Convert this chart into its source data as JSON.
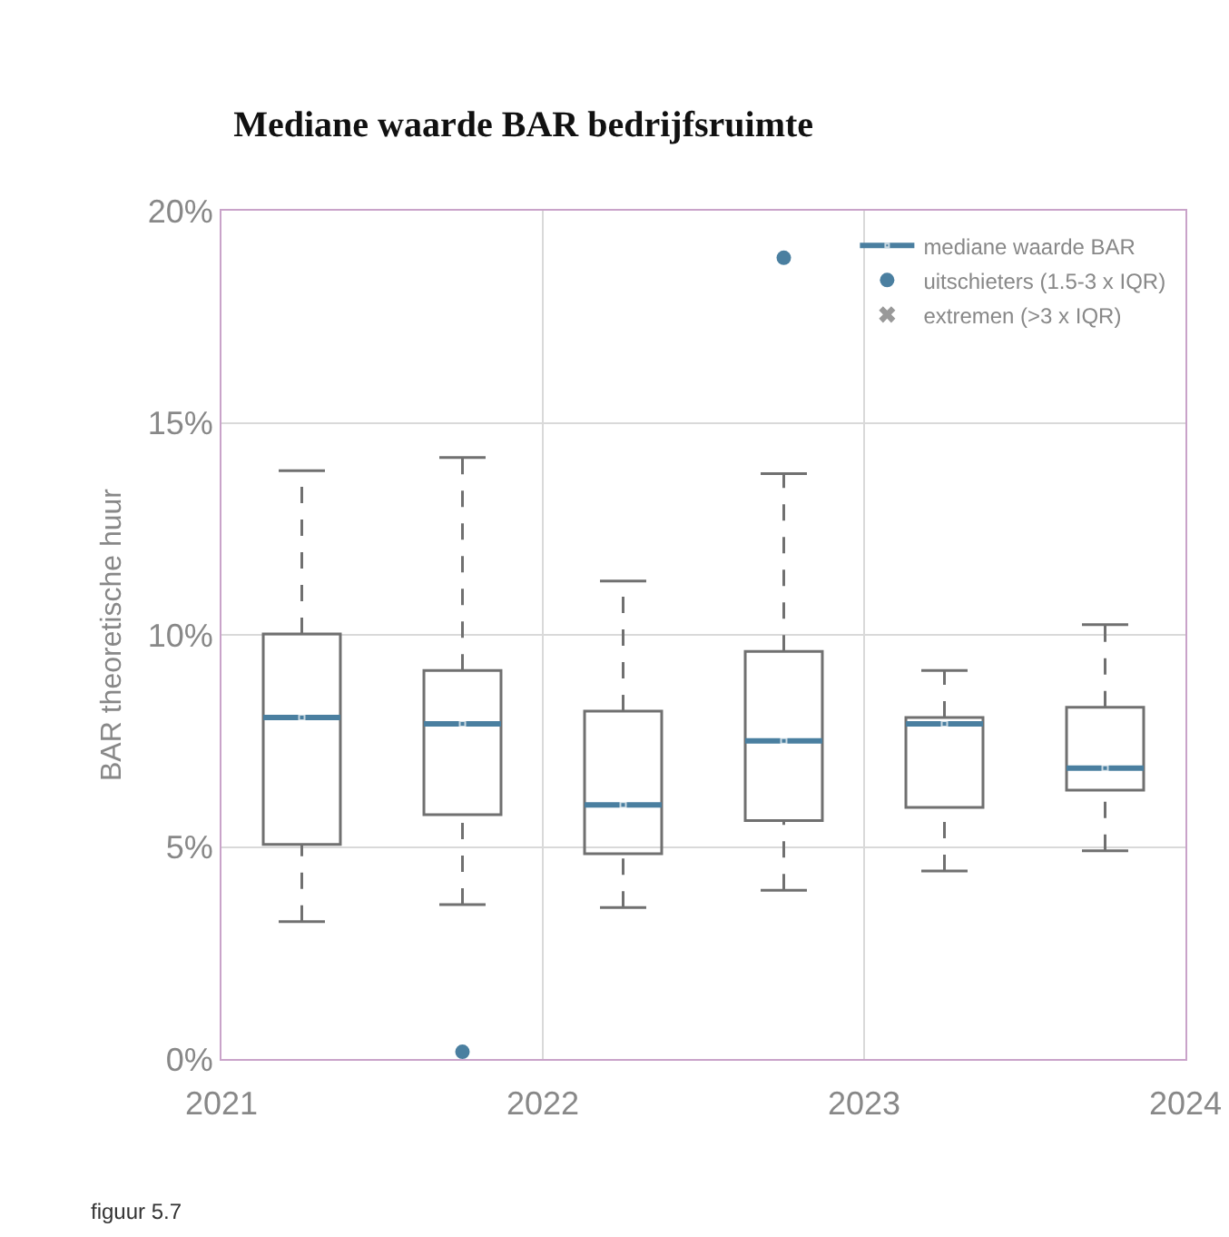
{
  "chart_data": {
    "type": "box",
    "title": "Mediane waarde BAR bedrijfsruimte",
    "ylabel": "BAR theoretische huur",
    "annotations": [
      "figuur 5.7"
    ],
    "x": [
      2021.25,
      2021.75,
      2022.25,
      2022.75,
      2023.25,
      2023.75
    ],
    "xlim": [
      2021,
      2024
    ],
    "xticks": [
      2021,
      2022,
      2023,
      2024
    ],
    "ylim": [
      0,
      20
    ],
    "yticks": [
      {
        "value": 0,
        "label": "0%"
      },
      {
        "value": 5,
        "label": "5%"
      },
      {
        "value": 10,
        "label": "10%"
      },
      {
        "value": 15,
        "label": "15%"
      },
      {
        "value": 20,
        "label": "20%"
      }
    ],
    "grid": true,
    "legend": "top right",
    "series": [
      {
        "type": "box",
        "color": "#707070",
        "line_style": "dashed",
        "boxes": [
          {
            "low": 3.24,
            "q1": 5.06,
            "median": 8.05,
            "q3": 10.02,
            "high": 13.87
          },
          {
            "low": 3.64,
            "q1": 5.76,
            "median": 7.9,
            "q3": 9.16,
            "high": 14.18
          },
          {
            "low": 3.57,
            "q1": 4.84,
            "median": 5.99,
            "q3": 8.2,
            "high": 11.27
          },
          {
            "low": 3.98,
            "q1": 5.62,
            "median": 7.5,
            "q3": 9.61,
            "high": 13.8
          },
          {
            "low": 4.43,
            "q1": 5.93,
            "median": 7.9,
            "q3": 8.05,
            "high": 9.16
          },
          {
            "low": 4.91,
            "q1": 6.34,
            "median": 6.86,
            "q3": 8.29,
            "high": 10.24
          }
        ]
      },
      {
        "type": "scatter",
        "name": "mediane waarde BAR",
        "color": "#4a7fa0",
        "x": [
          2021.25,
          2021.75,
          2022.25,
          2022.75,
          2023.25,
          2023.75
        ],
        "values": [
          8.05,
          7.9,
          5.99,
          7.5,
          7.9,
          6.86
        ]
      },
      {
        "type": "scatter",
        "name": "uitschieters (1.5-3 x IQR)",
        "color": "#4a7fa0",
        "marker": "circle",
        "x": [
          2021.75,
          2022.75
        ],
        "values": [
          0.17,
          18.89
        ]
      },
      {
        "type": "scatter",
        "name": "extremen (>3 x IQR)",
        "color": "#999999",
        "marker": "cross",
        "values": [
          null,
          null,
          null,
          null,
          null,
          null
        ]
      }
    ]
  }
}
